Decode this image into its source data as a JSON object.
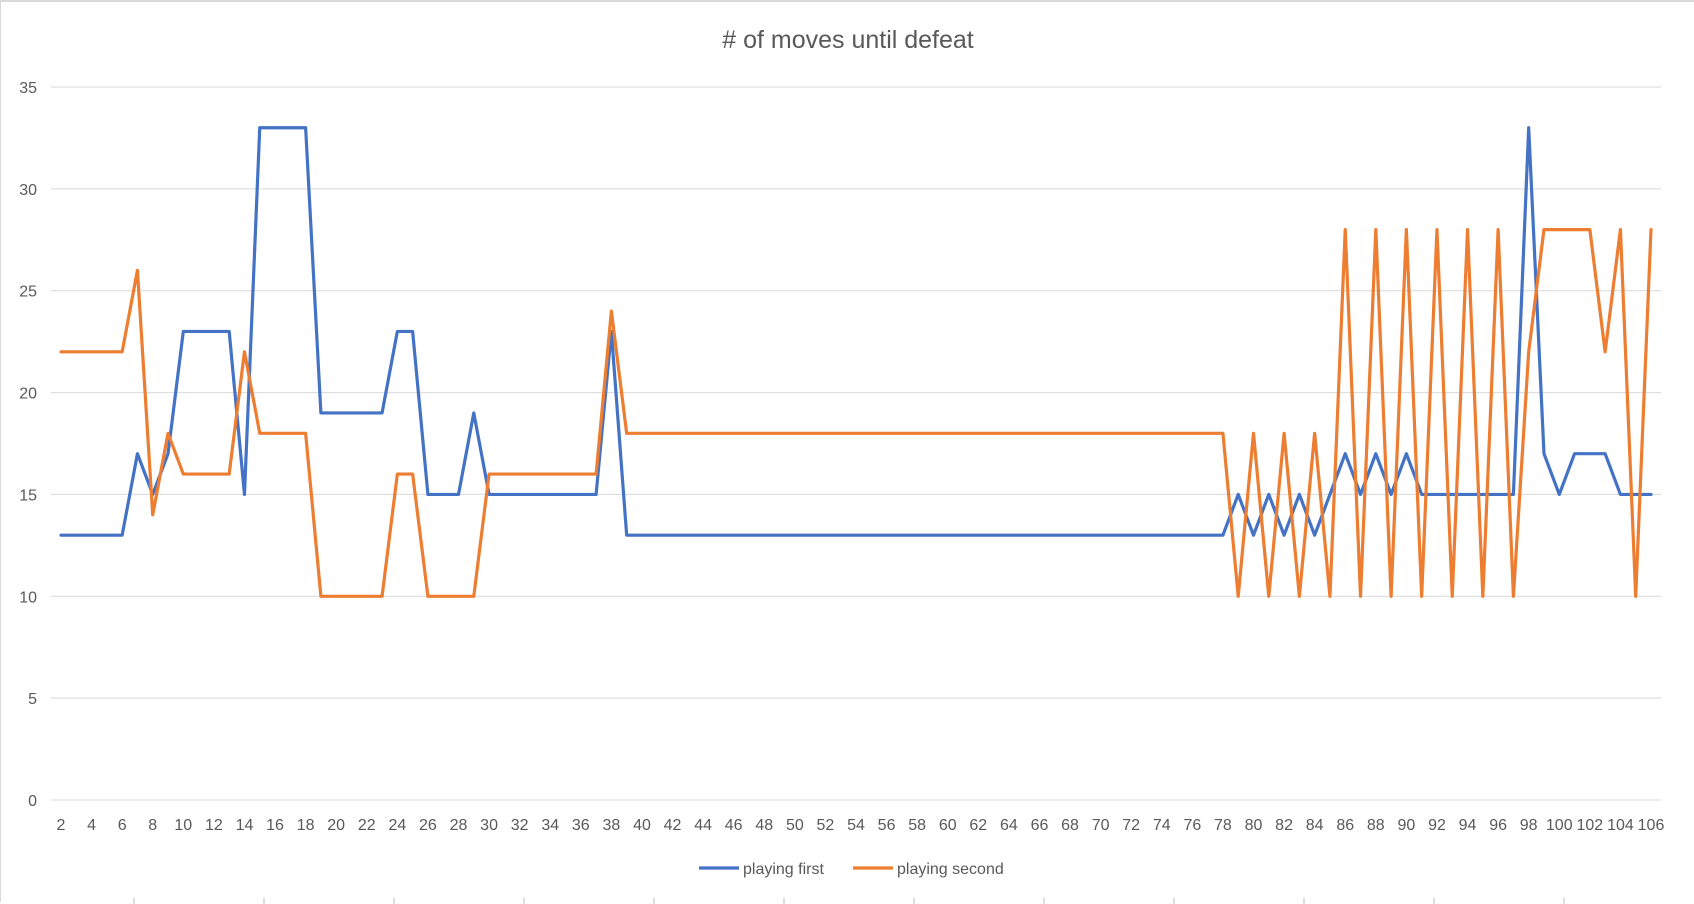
{
  "chart_data": {
    "type": "line",
    "title": "# of moves until defeat",
    "xlabel": "",
    "ylabel": "",
    "x": [
      2,
      3,
      4,
      5,
      6,
      7,
      8,
      9,
      10,
      11,
      12,
      13,
      14,
      15,
      16,
      17,
      18,
      19,
      20,
      21,
      22,
      23,
      24,
      25,
      26,
      27,
      28,
      29,
      30,
      31,
      32,
      33,
      34,
      35,
      36,
      37,
      38,
      39,
      40,
      41,
      42,
      43,
      44,
      45,
      46,
      47,
      48,
      49,
      50,
      51,
      52,
      53,
      54,
      55,
      56,
      57,
      58,
      59,
      60,
      61,
      62,
      63,
      64,
      65,
      66,
      67,
      68,
      69,
      70,
      71,
      72,
      73,
      74,
      75,
      76,
      77,
      78,
      79,
      80,
      81,
      82,
      83,
      84,
      85,
      86,
      87,
      88,
      89,
      90,
      91,
      92,
      93,
      94,
      95,
      96,
      97,
      98,
      99,
      100,
      101,
      102,
      103,
      104,
      105,
      106
    ],
    "x_tick_labels": [
      2,
      4,
      6,
      8,
      10,
      12,
      14,
      16,
      18,
      20,
      22,
      24,
      26,
      28,
      30,
      32,
      34,
      36,
      38,
      40,
      42,
      44,
      46,
      48,
      50,
      52,
      54,
      56,
      58,
      60,
      62,
      64,
      66,
      68,
      70,
      72,
      74,
      76,
      78,
      80,
      82,
      84,
      86,
      88,
      90,
      92,
      94,
      96,
      98,
      100,
      102,
      104,
      106
    ],
    "y_ticks": [
      0,
      5,
      10,
      15,
      20,
      25,
      30,
      35
    ],
    "ylim": [
      0,
      35
    ],
    "grid": "horizontal",
    "legend_position": "bottom",
    "series": [
      {
        "name": "playing first",
        "color": "#4472C4",
        "values": [
          13,
          13,
          13,
          13,
          13,
          17,
          15,
          17,
          23,
          23,
          23,
          23,
          15,
          33,
          33,
          33,
          33,
          19,
          19,
          19,
          19,
          19,
          23,
          23,
          15,
          15,
          15,
          19,
          15,
          15,
          15,
          15,
          15,
          15,
          15,
          15,
          23,
          13,
          13,
          13,
          13,
          13,
          13,
          13,
          13,
          13,
          13,
          13,
          13,
          13,
          13,
          13,
          13,
          13,
          13,
          13,
          13,
          13,
          13,
          13,
          13,
          13,
          13,
          13,
          13,
          13,
          13,
          13,
          13,
          13,
          13,
          13,
          13,
          13,
          13,
          13,
          13,
          15,
          13,
          15,
          13,
          15,
          13,
          15,
          17,
          15,
          17,
          15,
          17,
          15,
          15,
          15,
          15,
          15,
          15,
          15,
          33,
          17,
          15,
          17,
          17,
          17,
          15,
          15,
          15
        ]
      },
      {
        "name": "playing second",
        "color": "#ED7D31",
        "values": [
          22,
          22,
          22,
          22,
          22,
          26,
          14,
          18,
          16,
          16,
          16,
          16,
          22,
          18,
          18,
          18,
          18,
          10,
          10,
          10,
          10,
          10,
          16,
          16,
          10,
          10,
          10,
          10,
          16,
          16,
          16,
          16,
          16,
          16,
          16,
          16,
          24,
          18,
          18,
          18,
          18,
          18,
          18,
          18,
          18,
          18,
          18,
          18,
          18,
          18,
          18,
          18,
          18,
          18,
          18,
          18,
          18,
          18,
          18,
          18,
          18,
          18,
          18,
          18,
          18,
          18,
          18,
          18,
          18,
          18,
          18,
          18,
          18,
          18,
          18,
          18,
          18,
          10,
          18,
          10,
          18,
          10,
          18,
          10,
          28,
          10,
          28,
          10,
          28,
          10,
          28,
          10,
          28,
          10,
          28,
          10,
          22,
          28,
          28,
          28,
          28,
          22,
          28,
          10,
          28
        ]
      }
    ]
  }
}
